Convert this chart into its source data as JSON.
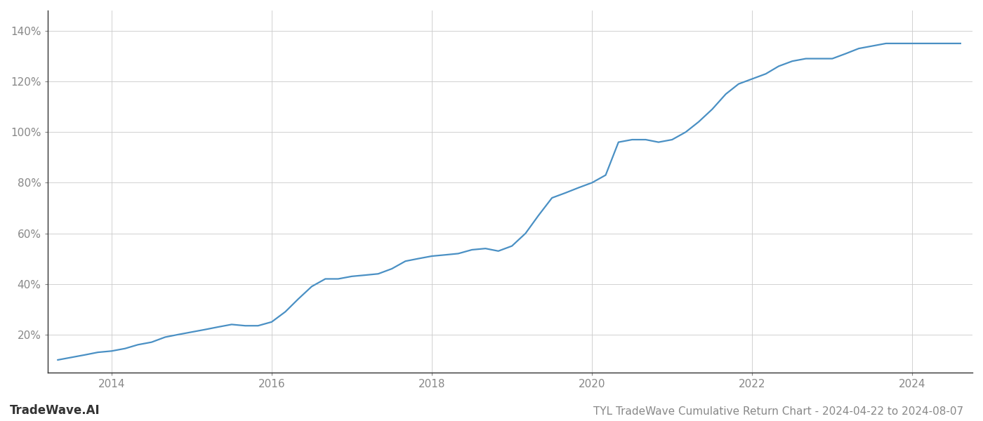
{
  "title": "TYL TradeWave Cumulative Return Chart - 2024-04-22 to 2024-08-07",
  "watermark": "TradeWave.AI",
  "line_color": "#4a90c4",
  "background_color": "#ffffff",
  "grid_color": "#cccccc",
  "x_values": [
    2013.33,
    2013.5,
    2013.67,
    2013.83,
    2014.0,
    2014.17,
    2014.33,
    2014.5,
    2014.67,
    2014.83,
    2015.0,
    2015.17,
    2015.33,
    2015.5,
    2015.67,
    2015.83,
    2016.0,
    2016.17,
    2016.33,
    2016.5,
    2016.67,
    2016.83,
    2017.0,
    2017.17,
    2017.33,
    2017.5,
    2017.67,
    2017.83,
    2018.0,
    2018.17,
    2018.33,
    2018.5,
    2018.67,
    2018.83,
    2019.0,
    2019.17,
    2019.33,
    2019.5,
    2019.67,
    2019.83,
    2020.0,
    2020.17,
    2020.33,
    2020.5,
    2020.67,
    2020.83,
    2021.0,
    2021.17,
    2021.33,
    2021.5,
    2021.67,
    2021.83,
    2022.0,
    2022.17,
    2022.33,
    2022.5,
    2022.67,
    2022.83,
    2023.0,
    2023.17,
    2023.33,
    2023.5,
    2023.67,
    2023.83,
    2024.0,
    2024.17,
    2024.33,
    2024.5,
    2024.6
  ],
  "y_values": [
    10,
    11,
    12,
    13,
    13.5,
    14.5,
    16,
    17,
    19,
    20,
    21,
    22,
    23,
    24,
    23.5,
    23.5,
    25,
    29,
    34,
    39,
    42,
    42,
    43,
    43.5,
    44,
    46,
    49,
    50,
    51,
    51.5,
    52,
    53.5,
    54,
    53,
    55,
    60,
    67,
    74,
    76,
    78,
    80,
    83,
    96,
    97,
    97,
    96,
    97,
    100,
    104,
    109,
    115,
    119,
    121,
    123,
    126,
    128,
    129,
    129,
    129,
    131,
    133,
    134,
    135,
    135,
    135,
    135,
    135,
    135,
    135
  ],
  "xlim": [
    2013.2,
    2024.75
  ],
  "ylim": [
    5,
    148
  ],
  "yticks": [
    20,
    40,
    60,
    80,
    100,
    120,
    140
  ],
  "ytick_labels": [
    "20%",
    "40%",
    "60%",
    "80%",
    "100%",
    "120%",
    "140%"
  ],
  "xticks": [
    2014,
    2016,
    2018,
    2020,
    2022,
    2024
  ],
  "xtick_labels": [
    "2014",
    "2016",
    "2018",
    "2020",
    "2022",
    "2024"
  ],
  "title_fontsize": 11,
  "tick_fontsize": 11,
  "watermark_fontsize": 12,
  "line_width": 1.6
}
